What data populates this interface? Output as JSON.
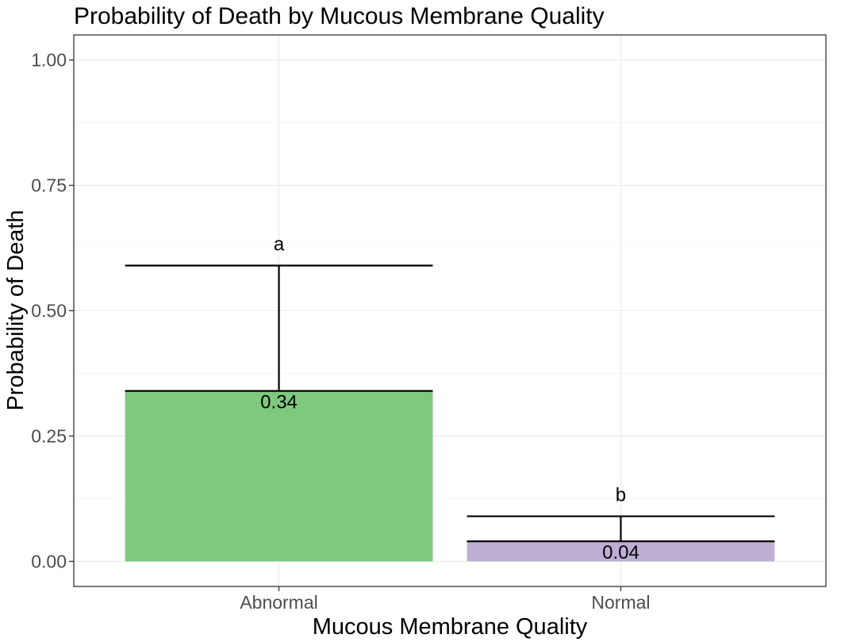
{
  "chart_data": {
    "type": "bar",
    "title": "Probability of Death by Mucous Membrane Quality",
    "xlabel": "Mucous Membrane Quality",
    "ylabel": "Probability of Death",
    "ylim": [
      -0.05,
      1.05
    ],
    "y_ticks": [
      "0.00",
      "0.25",
      "0.50",
      "0.75",
      "1.00"
    ],
    "grid": true,
    "categories": [
      "Abnormal",
      "Normal"
    ],
    "values": [
      0.34,
      0.04
    ],
    "value_labels": [
      "0.34",
      "0.04"
    ],
    "upper_ci": [
      0.59,
      0.09
    ],
    "significance_letters": [
      "a",
      "b"
    ],
    "bar_colors": [
      "#7fc97f",
      "#beaed4"
    ]
  }
}
